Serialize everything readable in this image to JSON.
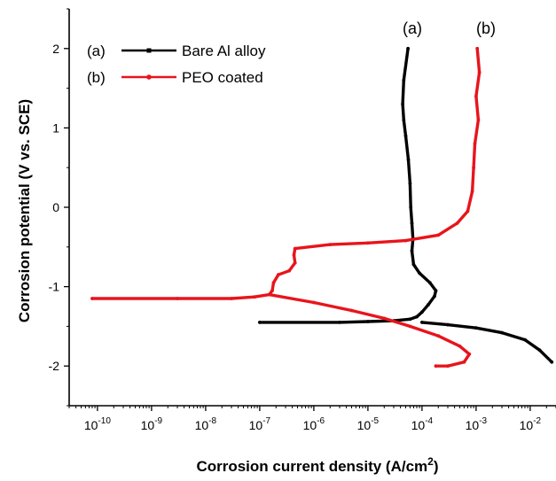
{
  "chart_data": {
    "type": "line",
    "xlabel": "Corrosion current density (A/cm",
    "xlabel_sup": "2",
    "xlabel_close": ")",
    "ylabel": "Corrosion potential (V vs. SCE)",
    "x_scale": "log",
    "xlim": [
      3e-11,
      0.03
    ],
    "ylim": [
      -2.5,
      2.5
    ],
    "x_ticks": [
      1e-10,
      1e-09,
      1e-08,
      1e-07,
      1e-06,
      1e-05,
      0.0001,
      0.001,
      0.01
    ],
    "x_tick_labels": [
      {
        "base": "10",
        "exp": "-10"
      },
      {
        "base": "10",
        "exp": "-9"
      },
      {
        "base": "10",
        "exp": "-8"
      },
      {
        "base": "10",
        "exp": "-7"
      },
      {
        "base": "10",
        "exp": "-6"
      },
      {
        "base": "10",
        "exp": "-5"
      },
      {
        "base": "10",
        "exp": "-4"
      },
      {
        "base": "10",
        "exp": "-3"
      },
      {
        "base": "10",
        "exp": "-2"
      }
    ],
    "y_ticks": [
      2,
      1,
      0,
      -1,
      -2
    ],
    "y_tick_labels": [
      "2",
      "1",
      "0",
      "-1",
      "-2"
    ],
    "grid": false,
    "legend_position": "top-left",
    "series": [
      {
        "id": "a",
        "name": "Bare Al alloy",
        "legend_tag": "(a)",
        "curve_label": "(a)",
        "color": "#000000",
        "points": [
          [
            1e-07,
            -1.45
          ],
          [
            3e-06,
            -1.45
          ],
          [
            1e-05,
            -1.44
          ],
          [
            3e-05,
            -1.43
          ],
          [
            6e-05,
            -1.41
          ],
          [
            8e-05,
            -1.38
          ],
          [
            0.0001,
            -1.32
          ],
          [
            0.00013,
            -1.23
          ],
          [
            0.00017,
            -1.12
          ],
          [
            0.00018,
            -1.05
          ],
          [
            0.00014,
            -0.95
          ],
          [
            9e-05,
            -0.83
          ],
          [
            7e-05,
            -0.72
          ],
          [
            6.5e-05,
            -0.55
          ],
          [
            6.8e-05,
            -0.4
          ],
          [
            6.5e-05,
            -0.2
          ],
          [
            6.2e-05,
            0.0
          ],
          [
            6e-05,
            0.3
          ],
          [
            5.6e-05,
            0.6
          ],
          [
            5e-05,
            0.9
          ],
          [
            4.6e-05,
            1.1
          ],
          [
            4.4e-05,
            1.3
          ],
          [
            4.6e-05,
            1.6
          ],
          [
            5.5e-05,
            2.0
          ]
        ],
        "cathodic_points": [
          [
            0.0001,
            -1.45
          ],
          [
            0.0003,
            -1.48
          ],
          [
            0.001,
            -1.52
          ],
          [
            0.003,
            -1.58
          ],
          [
            0.008,
            -1.67
          ],
          [
            0.015,
            -1.8
          ],
          [
            0.025,
            -1.95
          ]
        ]
      },
      {
        "id": "b",
        "name": "PEO coated",
        "legend_tag": "(b)",
        "curve_label": "(b)",
        "color": "#e8141c",
        "points": [
          [
            8e-11,
            -1.15
          ],
          [
            3e-09,
            -1.15
          ],
          [
            3e-08,
            -1.15
          ],
          [
            8e-08,
            -1.13
          ],
          [
            1.5e-07,
            -1.1
          ],
          [
            1.7e-07,
            -1.05
          ],
          [
            1.8e-07,
            -0.95
          ],
          [
            2.2e-07,
            -0.85
          ],
          [
            3.5e-07,
            -0.8
          ],
          [
            4.5e-07,
            -0.7
          ],
          [
            4.3e-07,
            -0.6
          ],
          [
            4.5e-07,
            -0.52
          ],
          [
            2e-06,
            -0.47
          ],
          [
            1e-05,
            -0.45
          ],
          [
            5e-05,
            -0.42
          ],
          [
            0.0002,
            -0.35
          ],
          [
            0.00045,
            -0.2
          ],
          [
            0.0007,
            -0.05
          ],
          [
            0.00085,
            0.2
          ],
          [
            0.0009,
            0.5
          ],
          [
            0.00095,
            0.8
          ],
          [
            0.0011,
            1.1
          ],
          [
            0.001,
            1.4
          ],
          [
            0.00115,
            1.7
          ],
          [
            0.00105,
            2.0
          ]
        ],
        "cathodic_points": [
          [
            1.5e-07,
            -1.1
          ],
          [
            1e-06,
            -1.2
          ],
          [
            5e-06,
            -1.3
          ],
          [
            2e-05,
            -1.4
          ],
          [
            6e-05,
            -1.5
          ],
          [
            0.0002,
            -1.62
          ],
          [
            0.0005,
            -1.75
          ],
          [
            0.00075,
            -1.85
          ],
          [
            0.0006,
            -1.95
          ],
          [
            0.0003,
            -2.0
          ],
          [
            0.00018,
            -2.0
          ]
        ]
      }
    ]
  }
}
